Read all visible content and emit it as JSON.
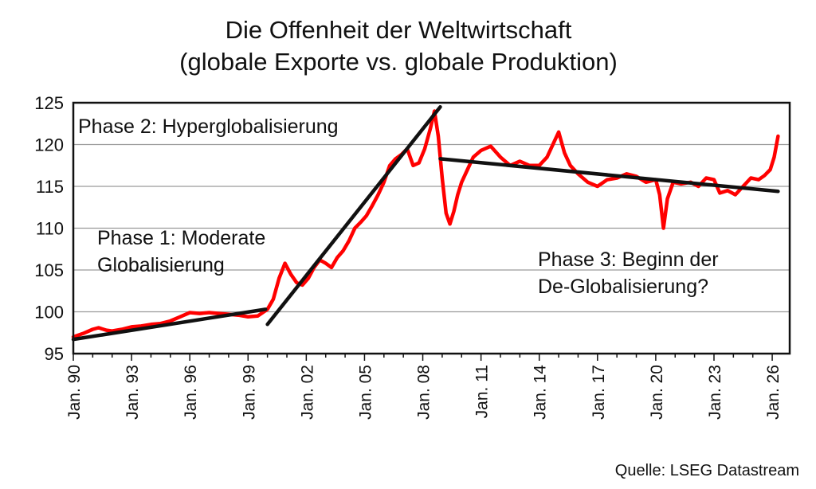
{
  "chart_data": {
    "type": "line",
    "title": "Die Offenheit der Weltwirtschaft",
    "subtitle": "(globale Exporte vs. globale Produktion)",
    "source": "Quelle: LSEG Datastream",
    "ylim": [
      95,
      125
    ],
    "yticks": [
      95,
      100,
      105,
      110,
      115,
      120,
      125
    ],
    "xlim": [
      1990.0,
      2026.9
    ],
    "xticks": [
      {
        "x": 1990,
        "label": "Jan. 90"
      },
      {
        "x": 1993,
        "label": "Jan. 93"
      },
      {
        "x": 1996,
        "label": "Jan. 96"
      },
      {
        "x": 1999,
        "label": "Jan. 99"
      },
      {
        "x": 2002,
        "label": "Jan. 02"
      },
      {
        "x": 2005,
        "label": "Jan. 05"
      },
      {
        "x": 2008,
        "label": "Jan. 08"
      },
      {
        "x": 2011,
        "label": "Jan. 11"
      },
      {
        "x": 2014,
        "label": "Jan. 14"
      },
      {
        "x": 2017,
        "label": "Jan. 17"
      },
      {
        "x": 2020,
        "label": "Jan. 20"
      },
      {
        "x": 2023,
        "label": "Jan. 23"
      },
      {
        "x": 2026,
        "label": "Jan. 26"
      }
    ],
    "grid": true,
    "series": [
      {
        "color": "#ff0000",
        "x": [
          1990.0,
          1990.5,
          1991.0,
          1991.3,
          1991.7,
          1992.0,
          1992.5,
          1993.0,
          1993.5,
          1994.0,
          1994.5,
          1995.0,
          1995.5,
          1996.0,
          1996.5,
          1997.0,
          1997.5,
          1998.0,
          1998.5,
          1999.0,
          1999.5,
          2000.0,
          2000.3,
          2000.6,
          2000.9,
          2001.2,
          2001.5,
          2001.8,
          2002.1,
          2002.4,
          2002.7,
          2003.0,
          2003.3,
          2003.6,
          2003.9,
          2004.2,
          2004.5,
          2004.8,
          2005.1,
          2005.4,
          2005.7,
          2006.0,
          2006.3,
          2006.6,
          2006.9,
          2007.2,
          2007.5,
          2007.8,
          2008.1,
          2008.4,
          2008.6,
          2008.8,
          2009.0,
          2009.2,
          2009.4,
          2009.6,
          2009.8,
          2010.0,
          2010.3,
          2010.6,
          2011.0,
          2011.5,
          2012.0,
          2012.5,
          2013.0,
          2013.5,
          2014.0,
          2014.4,
          2014.8,
          2015.0,
          2015.3,
          2015.6,
          2016.0,
          2016.5,
          2017.0,
          2017.5,
          2018.0,
          2018.5,
          2019.0,
          2019.5,
          2020.0,
          2020.2,
          2020.4,
          2020.6,
          2020.9,
          2021.3,
          2021.8,
          2022.2,
          2022.6,
          2023.0,
          2023.3,
          2023.7,
          2024.1,
          2024.5,
          2024.9,
          2025.3,
          2025.6,
          2025.9,
          2026.1,
          2026.3
        ],
        "y": [
          97.0,
          97.4,
          97.9,
          98.1,
          97.8,
          97.7,
          97.9,
          98.2,
          98.3,
          98.5,
          98.6,
          98.9,
          99.4,
          99.9,
          99.8,
          99.9,
          99.8,
          99.7,
          99.6,
          99.4,
          99.5,
          100.3,
          101.5,
          104.0,
          105.8,
          104.5,
          103.5,
          103.2,
          104.0,
          105.3,
          106.2,
          105.8,
          105.3,
          106.5,
          107.3,
          108.5,
          110.0,
          110.7,
          111.5,
          112.7,
          114.0,
          115.5,
          117.5,
          118.3,
          118.8,
          119.5,
          117.5,
          117.8,
          119.5,
          122.0,
          124.0,
          121.0,
          116.0,
          111.8,
          110.5,
          112.0,
          114.0,
          115.5,
          117.0,
          118.5,
          119.3,
          119.8,
          118.5,
          117.5,
          118.0,
          117.5,
          117.5,
          118.5,
          120.5,
          121.5,
          119.0,
          117.5,
          116.5,
          115.5,
          115.0,
          115.8,
          116.0,
          116.5,
          116.2,
          115.5,
          115.8,
          114.0,
          110.0,
          113.5,
          115.5,
          115.3,
          115.5,
          115.0,
          116.0,
          115.8,
          114.2,
          114.5,
          114.0,
          115.0,
          116.0,
          115.8,
          116.3,
          117.0,
          118.5,
          121.0
        ]
      }
    ],
    "trend_lines": [
      {
        "color": "#111111",
        "x": [
          1990.0,
          1999.9
        ],
        "y": [
          96.7,
          100.3
        ]
      },
      {
        "color": "#111111",
        "x": [
          2000.0,
          2008.9
        ],
        "y": [
          98.5,
          124.5
        ]
      },
      {
        "color": "#111111",
        "x": [
          2008.9,
          2026.3
        ],
        "y": [
          118.3,
          114.4
        ]
      }
    ],
    "annotations": [
      {
        "lines": [
          "Phase 2: Hyperglobalisierung"
        ]
      },
      {
        "lines": [
          "Phase 1: Moderate",
          "Globalisierung"
        ]
      },
      {
        "lines": [
          "Phase 3: Beginn der",
          "De-Globalisierung?"
        ]
      }
    ]
  }
}
